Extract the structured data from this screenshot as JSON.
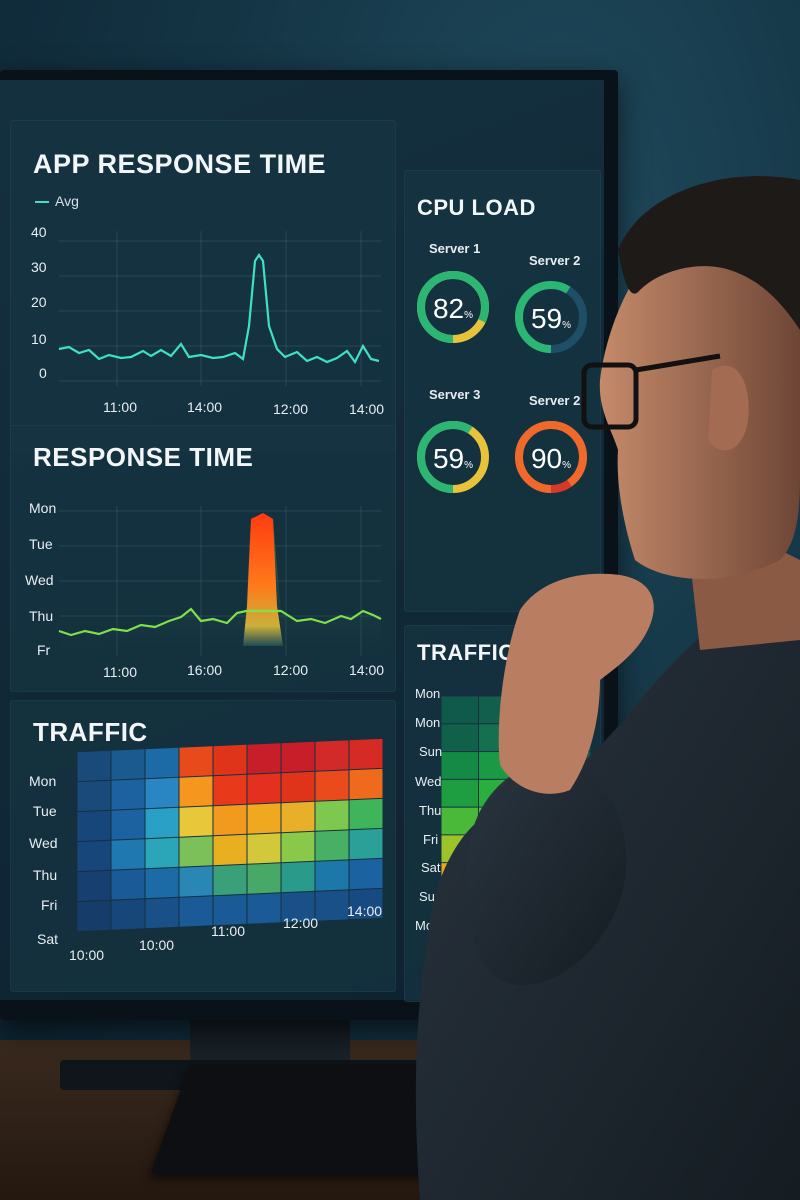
{
  "panels": {
    "app_response": {
      "title": "APP RESPONSE TIME",
      "legend": "Avg",
      "y_ticks": [
        "40",
        "30",
        "20",
        "10",
        "0"
      ],
      "x_ticks": [
        "11:00",
        "14:00",
        "12:00",
        "14:00"
      ]
    },
    "response_time": {
      "title": "RESPONSE TIME",
      "y_ticks": [
        "Mon",
        "Tue",
        "Wed",
        "Thu",
        "Fr"
      ],
      "x_ticks": [
        "11:00",
        "16:00",
        "12:00",
        "14:00"
      ]
    },
    "traffic_main": {
      "title": "TRAFFIC",
      "y_ticks": [
        "Mon",
        "Tue",
        "Wed",
        "Thu",
        "Fri",
        "Sat"
      ],
      "x_ticks": [
        "10:00",
        "10:00",
        "11:00",
        "12:00",
        "14:00"
      ]
    },
    "cpu": {
      "title": "CPU LOAD",
      "servers": [
        {
          "label": "Server 1",
          "value": "82",
          "unit": "%",
          "fraction": 0.82,
          "color": "#2bb673",
          "accent": "#e8c23a"
        },
        {
          "label": "Server 2",
          "value": "59",
          "unit": "%",
          "fraction": 0.59,
          "color": "#2bb673",
          "accent": "#1f4f66"
        },
        {
          "label": "Server 3",
          "value": "59",
          "unit": "%",
          "fraction": 0.59,
          "color": "#2bb673",
          "accent": "#e8c23a"
        },
        {
          "label": "Server 2",
          "value": "90",
          "unit": "%",
          "fraction": 0.9,
          "color": "#ef6a2a",
          "accent": "#d6392a"
        }
      ]
    },
    "traffic_side": {
      "title": "TRAFFIC",
      "y_ticks": [
        "Mon",
        "Mon",
        "Sun",
        "Wed",
        "Thu",
        "Fri",
        "Sat",
        "Sun",
        "Mon"
      ]
    }
  },
  "colors": {
    "line": "#3fe0c8",
    "green_line": "#7fe04a",
    "peak_hot": "#ff4d1a"
  }
}
